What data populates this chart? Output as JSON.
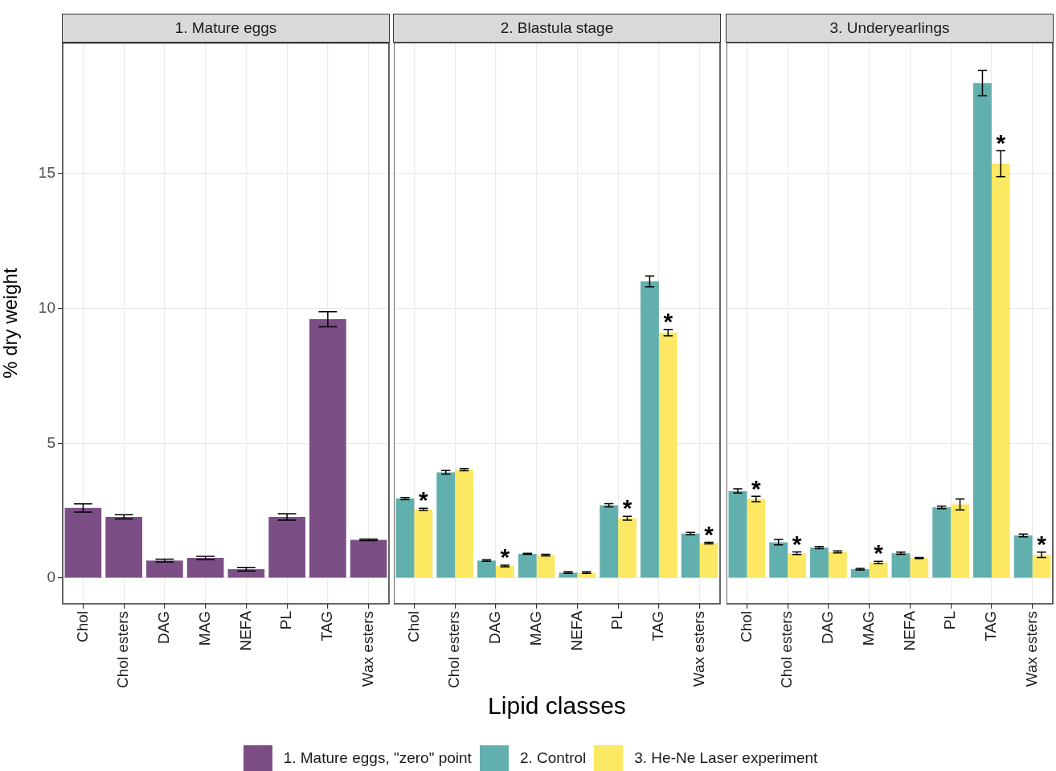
{
  "chart_data": [
    {
      "type": "bar",
      "title": "1. Mature eggs",
      "ylabel": "% dry weight",
      "categories": [
        "Chol",
        "Chol esters",
        "DAG",
        "MAG",
        "NEFA",
        "PL",
        "TAG",
        "Wax esters"
      ],
      "series": [
        {
          "name": "1. Mature eggs, \"zero\" point",
          "color": "#7b4f86",
          "values": [
            2.6,
            2.27,
            0.65,
            0.75,
            0.33,
            2.27,
            9.6,
            1.42
          ],
          "errors": [
            0.15,
            0.08,
            0.05,
            0.06,
            0.07,
            0.12,
            0.28,
            0.03
          ]
        }
      ],
      "ylim": [
        -0.95,
        19.85
      ],
      "yticks": [
        0,
        5,
        10,
        15
      ],
      "grid": true,
      "legend": "bottom"
    },
    {
      "type": "bar",
      "title": "2. Blastula stage",
      "xlabel": "Lipid classes",
      "categories": [
        "Chol",
        "Chol esters",
        "DAG",
        "MAG",
        "NEFA",
        "PL",
        "TAG",
        "Wax esters"
      ],
      "series": [
        {
          "name": "2. Control",
          "color": "#62b0ad",
          "values": [
            2.95,
            3.92,
            0.65,
            0.9,
            0.2,
            2.7,
            11.0,
            1.65
          ],
          "errors": [
            0.04,
            0.07,
            0.03,
            0.02,
            0.03,
            0.06,
            0.2,
            0.04
          ]
        },
        {
          "name": "3. He-Ne Laser experiment",
          "color": "#fce862",
          "values": [
            2.55,
            4.02,
            0.45,
            0.85,
            0.2,
            2.22,
            9.1,
            1.3
          ],
          "errors": [
            0.04,
            0.04,
            0.03,
            0.03,
            0.03,
            0.07,
            0.12,
            0.03
          ]
        }
      ],
      "annotations": [
        {
          "text": "*",
          "x": "Chol",
          "y": 2.55
        },
        {
          "text": "*",
          "x": "DAG",
          "y": 0.45
        },
        {
          "text": "*",
          "x": "PL",
          "y": 2.22
        },
        {
          "text": "*",
          "x": "TAG",
          "y": 9.1
        },
        {
          "text": "*",
          "x": "Wax esters",
          "y": 1.3
        }
      ],
      "ylim": [
        -0.95,
        19.85
      ],
      "yticks": [
        0,
        5,
        10,
        15
      ],
      "tick_labels": "x",
      "grid": true,
      "legend": "bottom"
    },
    {
      "type": "bar",
      "title": "3. Underyearlings",
      "categories": [
        "Chol",
        "Chol esters",
        "DAG",
        "MAG",
        "NEFA",
        "PL",
        "TAG",
        "Wax esters"
      ],
      "series": [
        {
          "color": "#62b0ad",
          "values": [
            3.23,
            1.33,
            1.13,
            0.33,
            0.92,
            2.62,
            18.35,
            1.58
          ],
          "errors": [
            0.08,
            0.1,
            0.04,
            0.03,
            0.04,
            0.05,
            0.47,
            0.05
          ]
        },
        {
          "color": "#fce862",
          "values": [
            2.93,
            0.92,
            0.97,
            0.58,
            0.74,
            2.73,
            15.36,
            0.86
          ],
          "errors": [
            0.1,
            0.05,
            0.04,
            0.04,
            0.02,
            0.2,
            0.48,
            0.1
          ]
        }
      ],
      "annotations": [
        {
          "text": "*",
          "x": "Chol",
          "y": 2.93
        },
        {
          "text": "*",
          "x": "Chol esters",
          "y": 0.92
        },
        {
          "text": "*",
          "x": "MAG",
          "y": 0.58
        },
        {
          "text": "*",
          "x": "TAG",
          "y": 15.36
        },
        {
          "text": "*",
          "x": "Wax esters",
          "y": 0.86
        }
      ],
      "ylim": [
        -0.95,
        19.85
      ],
      "yticks": [
        0,
        5,
        10,
        15
      ],
      "tick_labels": "x",
      "grid": true
    }
  ]
}
